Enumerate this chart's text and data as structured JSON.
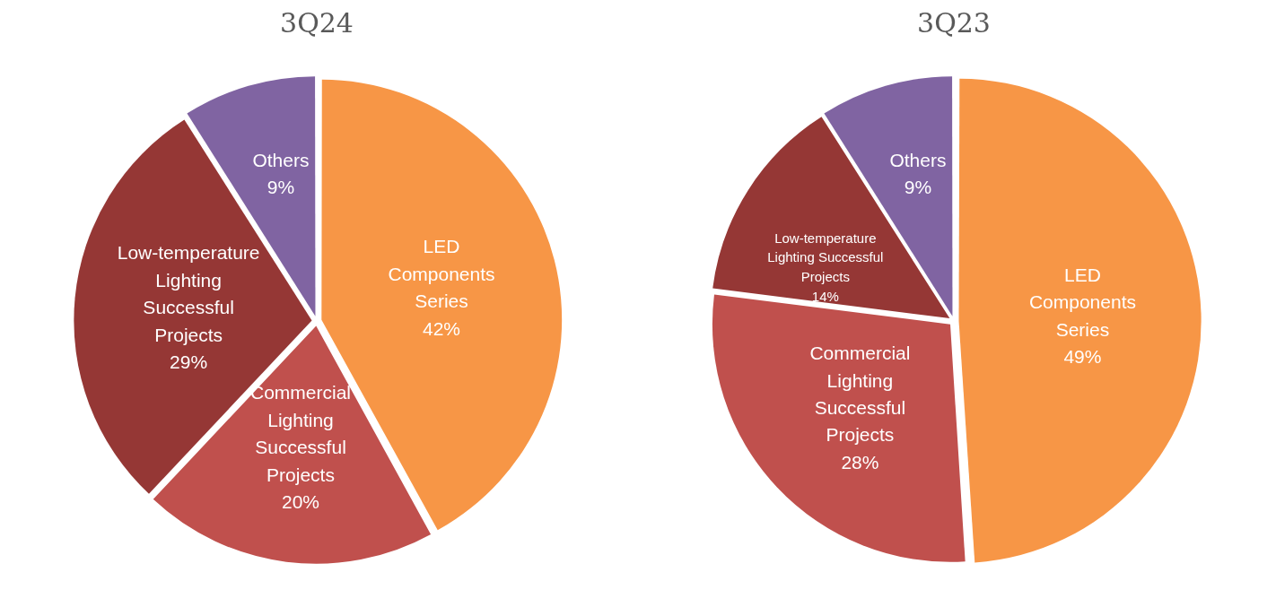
{
  "chart_data": [
    {
      "type": "pie",
      "title": "3Q24",
      "categories": [
        "LED Components Series",
        "Commercial Lighting Successful Projects",
        "Low-temperature Lighting Successful Projects",
        "Others"
      ],
      "values": [
        42,
        20,
        29,
        9
      ],
      "value_labels": [
        "42%",
        "20%",
        "29%",
        "9%"
      ],
      "colors": [
        "#f79646",
        "#c0504d",
        "#953735",
        "#8064a2"
      ]
    },
    {
      "type": "pie",
      "title": "3Q23",
      "categories": [
        "LED Components Series",
        "Commercial Lighting Successful Projects",
        "Low-temperature Lighting Successful Projects",
        "Others"
      ],
      "values": [
        49,
        28,
        14,
        9
      ],
      "value_labels": [
        "49%",
        "28%",
        "14%",
        "9%"
      ],
      "colors": [
        "#f79646",
        "#c0504d",
        "#953735",
        "#8064a2"
      ]
    }
  ]
}
